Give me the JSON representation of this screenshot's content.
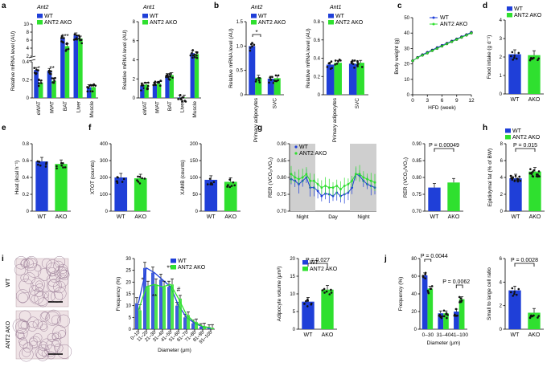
{
  "colors": {
    "wt": "#1f3fd8",
    "ako": "#2fe02f",
    "dot": "#111111",
    "grayband": "#cfcfcf",
    "tissue_bg": "#efe3e6"
  },
  "chart_data": [
    {
      "id": "a1",
      "letter": "a",
      "type": "bar",
      "title": "Ant2",
      "ylabel": "Relative mRNA level (AU)",
      "categories": [
        "eWAT",
        "iWAT",
        "BAT",
        "Liver",
        "Muscle"
      ],
      "legend": [
        "WT",
        "ANT2 AKO"
      ],
      "lower_axis": {
        "ylim": [
          0,
          0.4
        ],
        "ticks": [
          "0",
          "0.2",
          "0.4"
        ]
      },
      "upper_axis": {
        "ylim": [
          2,
          10
        ],
        "ticks": [
          "2",
          "4",
          "6",
          "8",
          "10"
        ]
      },
      "series": [
        {
          "name": "WT",
          "values": [
            0.31,
            0.3,
            6.4,
            7.2,
            0.12
          ]
        },
        {
          "name": "ANT2 AKO",
          "values": [
            0.17,
            0.19,
            4.5,
            6.4,
            0.12
          ]
        }
      ],
      "annotations": [
        "*",
        "**",
        "***"
      ]
    },
    {
      "id": "a2",
      "type": "bar",
      "title": "Ant1",
      "ylabel": "Relative mRNA level (AU)",
      "categories": [
        "eWAT",
        "iWAT",
        "BAT",
        "Liver",
        "Muscle"
      ],
      "legend": [
        "WT",
        "ANT2 AKO"
      ],
      "ylim": [
        0,
        8
      ],
      "yticks": [
        "0",
        "2",
        "4",
        "6",
        "8"
      ],
      "series": [
        {
          "name": "WT",
          "values": [
            1.3,
            1.4,
            2.3,
            0.05,
            4.7
          ]
        },
        {
          "name": "ANT2 AKO",
          "values": [
            1.4,
            1.5,
            2.4,
            0.05,
            4.6
          ]
        }
      ]
    },
    {
      "id": "b1",
      "letter": "b",
      "type": "bar",
      "title": "Ant2",
      "ylabel": "Relative mRNA level (AU)",
      "categories": [
        "Primary adipocytes",
        "SVC"
      ],
      "legend": [
        "WT",
        "ANT2 AKO"
      ],
      "ylim": [
        0,
        1.5
      ],
      "yticks": [
        "0",
        "0.5",
        "1.0",
        "1.5"
      ],
      "series": [
        {
          "name": "WT",
          "values": [
            1.0,
            0.33
          ]
        },
        {
          "name": "ANT2 AKO",
          "values": [
            0.35,
            0.34
          ]
        }
      ],
      "annotations": [
        "*"
      ]
    },
    {
      "id": "b2",
      "type": "bar",
      "title": "Ant1",
      "ylabel": "Relative mRNA level (AU)",
      "categories": [
        "Primary adipocytes",
        "SVC"
      ],
      "legend": [
        "WT",
        "ANT2 AKO"
      ],
      "ylim": [
        0,
        0.8
      ],
      "yticks": [
        "0",
        "0.2",
        "0.4",
        "0.6",
        "0.8"
      ],
      "series": [
        {
          "name": "WT",
          "values": [
            0.33,
            0.34
          ]
        },
        {
          "name": "ANT2 AKO",
          "values": [
            0.35,
            0.35
          ]
        }
      ]
    },
    {
      "id": "c",
      "letter": "c",
      "type": "line",
      "ylabel": "Body weight (g)",
      "xlabel": "HFD (week)",
      "legend": [
        "WT",
        "ANT2 AKO"
      ],
      "xlim": [
        0,
        12
      ],
      "xticks": [
        "0",
        "3",
        "6",
        "9",
        "12"
      ],
      "ylim": [
        0,
        50
      ],
      "yticks": [
        "0",
        "10",
        "20",
        "30",
        "40",
        "50"
      ],
      "x": [
        0,
        1,
        2,
        3,
        4,
        5,
        6,
        7,
        8,
        9,
        10,
        11,
        12
      ],
      "series": [
        {
          "name": "WT",
          "values": [
            22,
            24.2,
            26,
            27.5,
            29,
            30.6,
            32,
            33.4,
            34.8,
            36.2,
            37.6,
            39,
            40.5
          ]
        },
        {
          "name": "ANT2 AKO",
          "values": [
            22,
            24,
            25.6,
            27,
            28.6,
            30,
            31.5,
            33,
            34.4,
            35.8,
            37.2,
            38.6,
            40
          ]
        }
      ]
    },
    {
      "id": "d",
      "letter": "d",
      "type": "bar",
      "ylabel": "Food intake (g d⁻¹)",
      "categories": [
        "WT",
        "AKO"
      ],
      "legend": [
        "WT",
        "ANT2 AKO"
      ],
      "ylim": [
        0,
        4
      ],
      "yticks": [
        "0",
        "1",
        "2",
        "3",
        "4"
      ],
      "values": [
        2.15,
        2.1
      ]
    },
    {
      "id": "e",
      "letter": "e",
      "type": "bar",
      "ylabel": "Heat (kcal h⁻¹)",
      "categories": [
        "WT",
        "AKO"
      ],
      "ylim": [
        0,
        0.8
      ],
      "yticks": [
        "0",
        "0.2",
        "0.4",
        "0.6",
        "0.8"
      ],
      "values": [
        0.59,
        0.56
      ]
    },
    {
      "id": "f1",
      "letter": "f",
      "type": "bar",
      "ylabel": "XTOT (counts)",
      "categories": [
        "WT",
        "AKO"
      ],
      "ylim": [
        0,
        400
      ],
      "yticks": [
        "0",
        "100",
        "200",
        "300",
        "400"
      ],
      "values": [
        200,
        195
      ]
    },
    {
      "id": "f2",
      "type": "bar",
      "ylabel": "XAMB (counts)",
      "categories": [
        "WT",
        "AKO"
      ],
      "ylim": [
        0,
        200
      ],
      "yticks": [
        "0",
        "50",
        "100",
        "150",
        "200"
      ],
      "values": [
        93,
        87
      ]
    },
    {
      "id": "g1",
      "letter": "g",
      "type": "line",
      "ylabel": "RER (VCO₂/VO₂)",
      "legend": [
        "WT",
        "ANT2 AKO"
      ],
      "ylim": [
        0.7,
        0.9
      ],
      "yticks": [
        "0.70",
        "0.75",
        "0.80",
        "0.85",
        "0.90"
      ],
      "xticks": [
        "Night",
        "Day",
        "Night"
      ],
      "series": [
        {
          "name": "WT",
          "values": [
            0.795,
            0.79,
            0.78,
            0.79,
            0.8,
            0.77,
            0.77,
            0.76,
            0.745,
            0.752,
            0.75,
            0.745,
            0.755,
            0.745,
            0.75,
            0.755,
            0.77,
            0.81,
            0.805,
            0.79,
            0.78,
            0.775,
            0.77
          ]
        },
        {
          "name": "ANT2 AKO",
          "values": [
            0.81,
            0.8,
            0.795,
            0.8,
            0.81,
            0.79,
            0.79,
            0.78,
            0.77,
            0.775,
            0.77,
            0.77,
            0.775,
            0.765,
            0.775,
            0.78,
            0.79,
            0.81,
            0.81,
            0.8,
            0.795,
            0.79,
            0.785
          ]
        }
      ]
    },
    {
      "id": "g2",
      "type": "bar",
      "ylabel": "RER (VCO₂/VO₂)",
      "categories": [
        "WT",
        "AKO"
      ],
      "ylim": [
        0.7,
        0.9
      ],
      "yticks": [
        "0.70",
        "0.75",
        "0.80",
        "0.85",
        "0.90"
      ],
      "values": [
        0.77,
        0.785
      ],
      "pvalue": "P = 0.00049"
    },
    {
      "id": "h",
      "letter": "h",
      "type": "bar",
      "ylabel": "Epididymal fat (% of BW)",
      "categories": [
        "WT",
        "AKO"
      ],
      "legend": [
        "WT",
        "ANT2 AKO"
      ],
      "ylim": [
        0,
        8
      ],
      "yticks": [
        "0",
        "2",
        "4",
        "6",
        "8"
      ],
      "values": [
        3.9,
        4.7
      ],
      "pvalue": "P = 0.015"
    },
    {
      "id": "i1",
      "type": "line",
      "ylabel": "Frequency (%)",
      "xlabel": "Diameter (μm)",
      "legend": [
        "WT",
        "ANT2 AKO"
      ],
      "categories": [
        "0–10",
        "11–20",
        "21–30",
        "31–40",
        "41–50",
        "51–60",
        "61–70",
        "71–80",
        "81–90",
        "91–100"
      ],
      "ylim": [
        0,
        30
      ],
      "yticks": [
        "0",
        "5",
        "10",
        "15",
        "20",
        "25",
        "30"
      ],
      "series": [
        {
          "name": "WT",
          "values": [
            11,
            26,
            24,
            21,
            18,
            10,
            5,
            2.5,
            1,
            0.5
          ]
        },
        {
          "name": "ANT2 AKO",
          "values": [
            8,
            18,
            19,
            18,
            19,
            13,
            6,
            3,
            1.2,
            0.6
          ]
        }
      ],
      "annotations": [
        "*",
        "**",
        "***",
        "#"
      ]
    },
    {
      "id": "i2",
      "type": "bar",
      "ylabel": "Adipocyte volume (μm³)",
      "categories": [
        "WT",
        "AKO"
      ],
      "legend": [
        "WT",
        "ANT2 AKO"
      ],
      "ylim": [
        0,
        20
      ],
      "yticks": [
        "0",
        "5",
        "10",
        "15",
        "20"
      ],
      "values": [
        7.8,
        11.2
      ],
      "pvalue": "P = 0.027"
    },
    {
      "id": "j1",
      "letter": "j",
      "type": "bar",
      "ylabel": "Frequency (%)",
      "xlabel": "Diameter (μm)",
      "categories": [
        "0–30",
        "31–40",
        "41–100"
      ],
      "ylim": [
        0,
        80
      ],
      "yticks": [
        "0",
        "20",
        "40",
        "60",
        "80"
      ],
      "series": [
        {
          "name": "WT",
          "values": [
            61,
            18,
            20
          ]
        },
        {
          "name": "ANT2 AKO",
          "values": [
            46,
            18,
            34
          ]
        }
      ],
      "pvalues": [
        "P = 0.0044",
        "P = 0.0062"
      ]
    },
    {
      "id": "j2",
      "type": "bar",
      "ylabel": "Small to large cell ratio",
      "categories": [
        "WT",
        "AKO"
      ],
      "ylim": [
        0,
        6
      ],
      "yticks": [
        "0",
        "2",
        "4",
        "6"
      ],
      "values": [
        3.3,
        1.4
      ],
      "pvalue": "P = 0.0028"
    }
  ],
  "histology": {
    "letter": "i",
    "labels": [
      "WT",
      "ANT2 AKO"
    ]
  }
}
